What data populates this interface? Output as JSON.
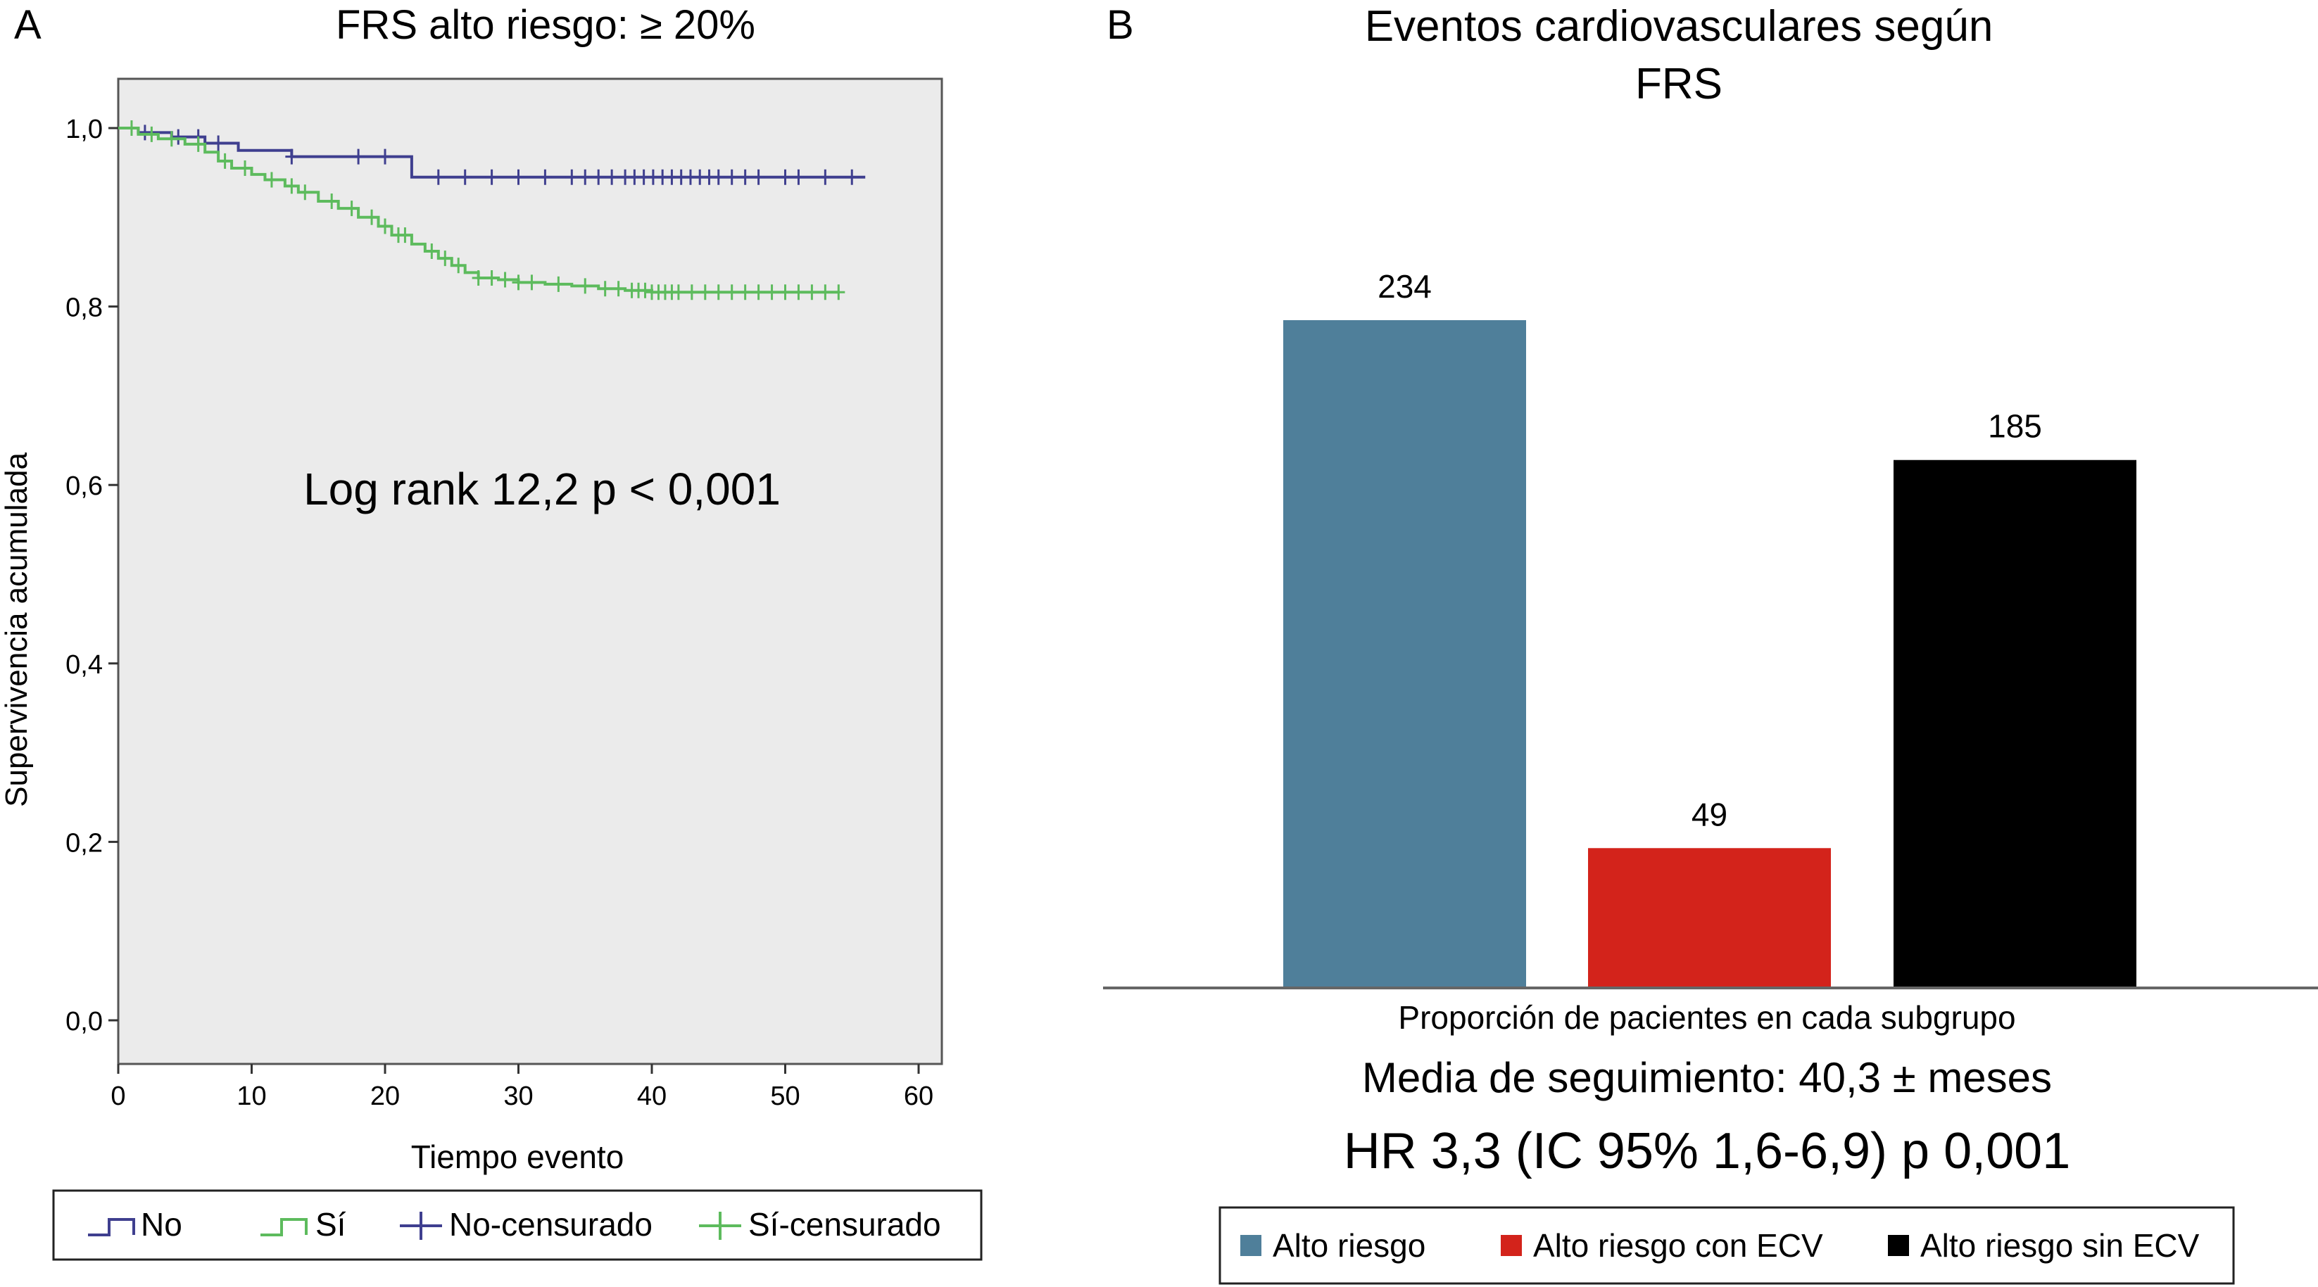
{
  "panels": {
    "a": {
      "letter": "A",
      "title": "FRS alto riesgo: ≥ 20%",
      "annotation": "Log rank 12,2 p < 0,001"
    },
    "b": {
      "letter": "B",
      "title_line1": "Eventos cardiovasculares según",
      "title_line2": "FRS",
      "subtitle": "Media de seguimiento: 40,3 ± meses",
      "stat": "HR 3,3 (IC 95% 1,6-6,9) p 0,001"
    }
  },
  "colors": {
    "no": "#3f3f8f",
    "si": "#5dbb5d",
    "plot_bg": "#ebebeb",
    "alto_riesgo": "#4f7f9a",
    "alto_riesgo_con_ecv": "#d3231b",
    "alto_riesgo_sin_ecv": "#000000"
  },
  "chart_data": [
    {
      "type": "line",
      "subtype": "kaplan-meier",
      "title": "FRS alto riesgo: ≥ 20%",
      "xlabel": "Tiempo evento",
      "ylabel": "Supervivencia acumulada",
      "xlim": [
        0,
        60
      ],
      "ylim": [
        0,
        1.0
      ],
      "xticks": [
        "0",
        "10",
        "20",
        "30",
        "40",
        "50",
        "60"
      ],
      "yticks": [
        "0,0",
        "0,2",
        "0,4",
        "0,6",
        "0,8",
        "1,0"
      ],
      "annotation": "Log rank 12,2 p < 0,001",
      "legend": [
        "No",
        "Sí",
        "No-censurado",
        "Sí-censurado"
      ],
      "legend_position": "bottom",
      "series": [
        {
          "name": "No",
          "steps": [
            [
              0,
              1.0
            ],
            [
              1.5,
              0.995
            ],
            [
              4,
              0.99
            ],
            [
              6.5,
              0.983
            ],
            [
              9,
              0.975
            ],
            [
              13,
              0.968
            ],
            [
              22,
              0.945
            ],
            [
              56,
              0.945
            ]
          ],
          "censored": [
            2,
            4.5,
            6,
            7.5,
            13,
            18,
            20,
            24,
            26,
            28,
            30,
            32,
            34,
            35,
            36,
            37,
            38,
            38.7,
            39.4,
            40.1,
            40.8,
            41.5,
            42.2,
            42.9,
            43.6,
            44.3,
            45,
            46,
            47,
            48,
            50,
            51,
            53,
            55
          ]
        },
        {
          "name": "Sí",
          "steps": [
            [
              0,
              1.0
            ],
            [
              1.5,
              0.993
            ],
            [
              3,
              0.988
            ],
            [
              5,
              0.982
            ],
            [
              6.5,
              0.973
            ],
            [
              7.5,
              0.963
            ],
            [
              8.5,
              0.955
            ],
            [
              10,
              0.948
            ],
            [
              11,
              0.942
            ],
            [
              12.5,
              0.935
            ],
            [
              13.5,
              0.928
            ],
            [
              15,
              0.918
            ],
            [
              16.5,
              0.91
            ],
            [
              18,
              0.9
            ],
            [
              19.5,
              0.89
            ],
            [
              20.5,
              0.88
            ],
            [
              22,
              0.87
            ],
            [
              23,
              0.862
            ],
            [
              24,
              0.854
            ],
            [
              25,
              0.846
            ],
            [
              26,
              0.838
            ],
            [
              27,
              0.832
            ],
            [
              28.5,
              0.83
            ],
            [
              30,
              0.827
            ],
            [
              32,
              0.825
            ],
            [
              34,
              0.823
            ],
            [
              36,
              0.82
            ],
            [
              38,
              0.818
            ],
            [
              40,
              0.816
            ],
            [
              54,
              0.816
            ]
          ],
          "censored": [
            1,
            2.5,
            4,
            6,
            8,
            9.5,
            11.5,
            13,
            14,
            16,
            17.5,
            19,
            20,
            21,
            21.5,
            23.5,
            24.5,
            25.5,
            27,
            28,
            29,
            30,
            31,
            33,
            35,
            36.5,
            37.5,
            38.5,
            39,
            39.5,
            40,
            40.5,
            41,
            41.5,
            42,
            43,
            44,
            45,
            46,
            47,
            48,
            49,
            50,
            51,
            52,
            53,
            54
          ]
        }
      ]
    },
    {
      "type": "bar",
      "title": "Eventos cardiovasculares según FRS",
      "xlabel": "Proporción de pacientes en cada subgrupo",
      "ylabel": "",
      "categories": [
        "Alto riesgo",
        "Alto riesgo con ECV",
        "Alto riesgo sin ECV"
      ],
      "values": [
        234,
        49,
        185
      ],
      "value_labels": [
        "234",
        "49",
        "185"
      ],
      "ylim": [
        0,
        280
      ],
      "grid": false,
      "legend": [
        "Alto riesgo",
        "Alto riesgo con ECV",
        "Alto riesgo sin ECV"
      ],
      "legend_position": "bottom"
    }
  ]
}
